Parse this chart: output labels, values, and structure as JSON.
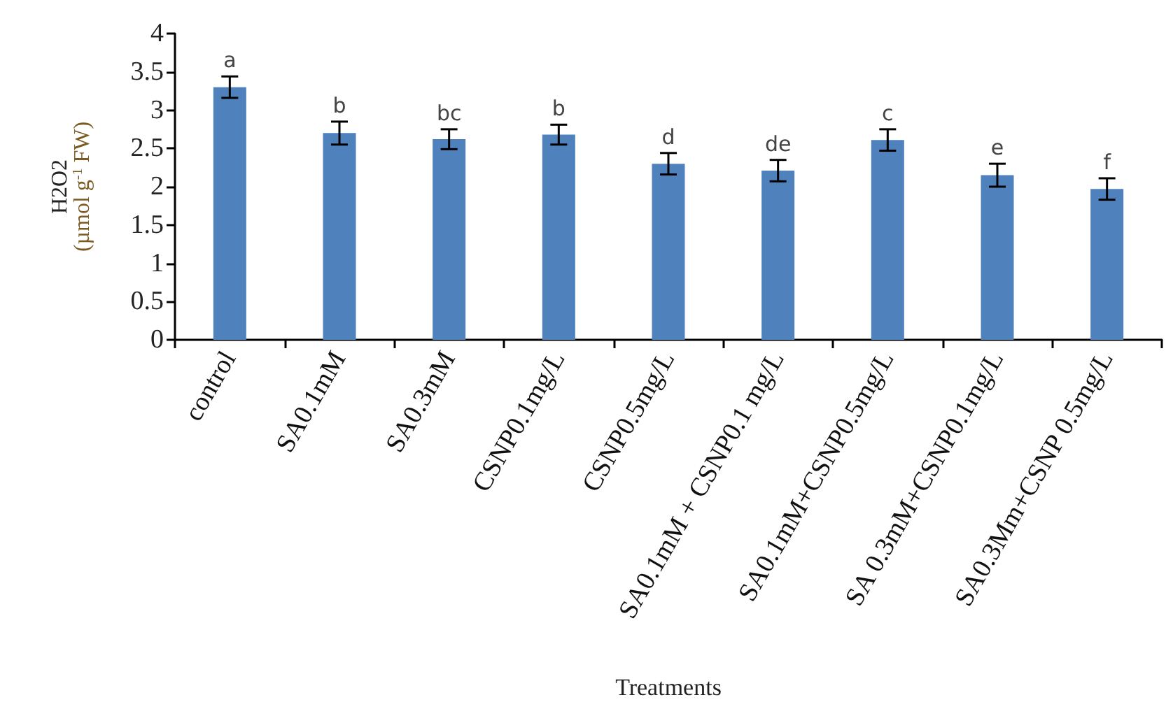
{
  "chart_data": {
    "type": "bar",
    "categories": [
      "control",
      "SA0.1mM",
      "SA0.3mM",
      "CSNP0.1mg/L",
      "CSNP0.5mg/L",
      "SA0.1mM + CSNP0.1 mg/L",
      "SA0.1mM+CSNP0.5mg/L",
      "SA 0.3mM+CSNP0.1mg/L",
      "SA0.3Mm+CSNP 0.5mg/L"
    ],
    "values": [
      3.3,
      2.7,
      2.62,
      2.68,
      2.3,
      2.21,
      2.61,
      2.15,
      1.97
    ],
    "errors": [
      0.14,
      0.15,
      0.13,
      0.13,
      0.14,
      0.14,
      0.14,
      0.15,
      0.14
    ],
    "color": "#4f81bd",
    "xlabel": "Treatments",
    "ylabel": "H2O2\n(µmol g$^{-1}$ FW)",
    "ylim": [
      0,
      4
    ],
    "yticks": [
      0,
      0.5,
      1,
      1.5,
      2,
      2.5,
      3,
      3.5,
      4
    ],
    "grid": false,
    "annotations": [
      "a",
      "b",
      "bc",
      "b",
      "d",
      "de",
      "c",
      "e",
      "f"
    ]
  }
}
